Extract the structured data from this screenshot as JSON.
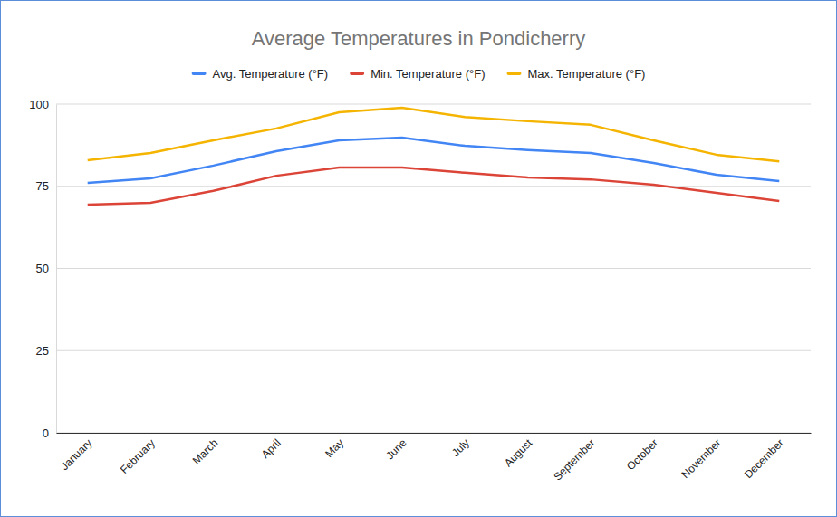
{
  "chart_data": {
    "type": "line",
    "title": "Average Temperatures in Pondicherry",
    "categories": [
      "January",
      "February",
      "March",
      "April",
      "May",
      "June",
      "July",
      "August",
      "September",
      "October",
      "November",
      "December"
    ],
    "series": [
      {
        "name": "Avg. Temperature (°F)",
        "color": "#4285f4",
        "values": [
          76.0,
          77.4,
          81.3,
          85.7,
          89.0,
          89.8,
          87.3,
          86.0,
          85.1,
          82.1,
          78.5,
          76.6
        ]
      },
      {
        "name": "Min. Temperature (°F)",
        "color": "#db4437",
        "values": [
          69.4,
          70.0,
          73.6,
          78.2,
          80.7,
          80.7,
          79.1,
          77.7,
          77.1,
          75.5,
          73.0,
          70.5
        ]
      },
      {
        "name": "Max. Temperature (°F)",
        "color": "#f4b400",
        "values": [
          82.9,
          85.1,
          89.0,
          92.6,
          97.5,
          98.9,
          96.1,
          94.8,
          93.7,
          89.0,
          84.6,
          82.6
        ]
      }
    ],
    "ylim": [
      0,
      100
    ],
    "yticks": [
      0,
      25,
      50,
      75,
      100
    ],
    "grid": true,
    "legend": "top"
  }
}
